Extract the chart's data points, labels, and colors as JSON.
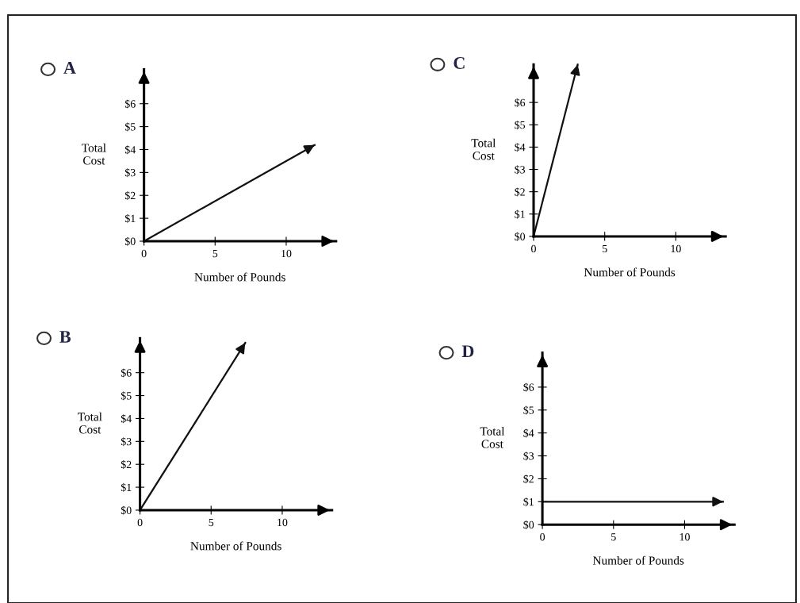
{
  "chart_data": [
    {
      "type": "line",
      "title": "A",
      "xlabel": "Number of Pounds",
      "ylabel": "Total\nCost",
      "x": [
        0,
        12
      ],
      "series": [
        {
          "color": "#111111",
          "values": [
            0,
            4.2
          ]
        }
      ],
      "xlim": [
        0,
        13.5
      ],
      "ylim": [
        0,
        7.5
      ],
      "xticks": [
        0,
        5,
        10
      ],
      "yticks": [
        {
          "value": 0,
          "label": "$0"
        },
        {
          "value": 1,
          "label": "$1"
        },
        {
          "value": 2,
          "label": "$2"
        },
        {
          "value": 3,
          "label": "$3"
        },
        {
          "value": 4,
          "label": "$4"
        },
        {
          "value": 5,
          "label": "$5"
        },
        {
          "value": 6,
          "label": "$6"
        }
      ]
    },
    {
      "type": "line",
      "title": "C",
      "xlabel": "Number of Pounds",
      "ylabel": "Total\nCost",
      "x": [
        0,
        3.1
      ],
      "series": [
        {
          "color": "#111111",
          "values": [
            0,
            7.7
          ]
        }
      ],
      "xlim": [
        0,
        13.5
      ],
      "ylim": [
        0,
        7.7
      ],
      "xticks": [
        0,
        5,
        10
      ],
      "yticks": [
        {
          "value": 0,
          "label": "$0"
        },
        {
          "value": 1,
          "label": "$1"
        },
        {
          "value": 2,
          "label": "$2"
        },
        {
          "value": 3,
          "label": "$3"
        },
        {
          "value": 4,
          "label": "$4"
        },
        {
          "value": 5,
          "label": "$5"
        },
        {
          "value": 6,
          "label": "$6"
        }
      ]
    },
    {
      "type": "line",
      "title": "B",
      "xlabel": "Number of Pounds",
      "ylabel": "Total\nCost",
      "x": [
        0,
        7.4
      ],
      "series": [
        {
          "color": "#111111",
          "values": [
            0,
            7.3
          ]
        }
      ],
      "xlim": [
        0,
        13.5
      ],
      "ylim": [
        0,
        7.5
      ],
      "xticks": [
        0,
        5,
        10
      ],
      "yticks": [
        {
          "value": 0,
          "label": "$0"
        },
        {
          "value": 1,
          "label": "$1"
        },
        {
          "value": 2,
          "label": "$2"
        },
        {
          "value": 3,
          "label": "$3"
        },
        {
          "value": 4,
          "label": "$4"
        },
        {
          "value": 5,
          "label": "$5"
        },
        {
          "value": 6,
          "label": "$6"
        }
      ]
    },
    {
      "type": "line",
      "title": "D",
      "xlabel": "Number of Pounds",
      "ylabel": "Total\nCost",
      "x": [
        0,
        12.7
      ],
      "series": [
        {
          "color": "#111111",
          "values": [
            1,
            1
          ]
        }
      ],
      "xlim": [
        0,
        13.5
      ],
      "ylim": [
        0,
        7.5
      ],
      "xticks": [
        0,
        5,
        10
      ],
      "yticks": [
        {
          "value": 0,
          "label": "$0"
        },
        {
          "value": 1,
          "label": "$1"
        },
        {
          "value": 2,
          "label": "$2"
        },
        {
          "value": 3,
          "label": "$3"
        },
        {
          "value": 4,
          "label": "$4"
        },
        {
          "value": 5,
          "label": "$5"
        },
        {
          "value": 6,
          "label": "$6"
        }
      ]
    }
  ]
}
